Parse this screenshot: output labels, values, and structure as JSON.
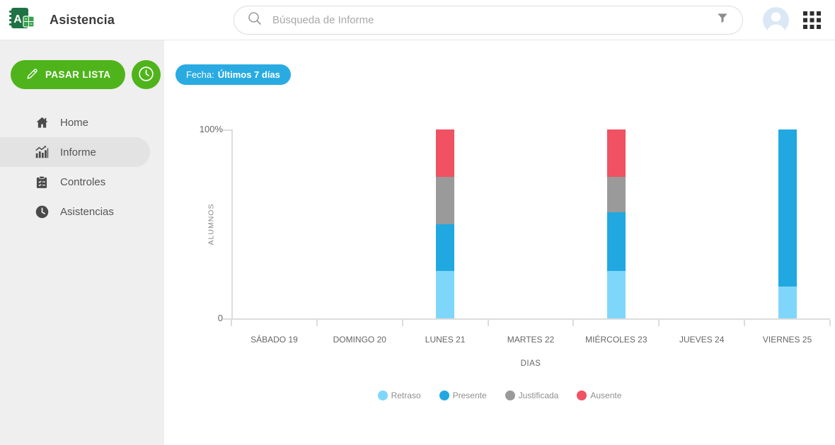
{
  "header": {
    "app_title": "Asistencia",
    "logo_letter": "A",
    "search": {
      "placeholder": "Búsqueda de Informe",
      "value": ""
    },
    "icons": {
      "search": "magnifier",
      "filter": "funnel",
      "apps": "3x3-grid",
      "avatar": "person-silhouette"
    }
  },
  "sidebar": {
    "pass_list_button": "PASAR LISTA",
    "items": [
      {
        "label": "Home",
        "icon": "home-icon",
        "active": false
      },
      {
        "label": "Informe",
        "icon": "bar-chart-icon",
        "active": true
      },
      {
        "label": "Controles",
        "icon": "clipboard-icon",
        "active": false
      },
      {
        "label": "Asistencias",
        "icon": "clock-icon",
        "active": false
      }
    ]
  },
  "filters": {
    "date_prefix": "Fecha:",
    "date_value": "Últimos 7 días"
  },
  "chart_data": {
    "type": "bar",
    "subtype": "stacked-percent",
    "title": "",
    "xlabel": "DIAS",
    "ylabel": "ALUMNOS",
    "ylim": [
      0,
      100
    ],
    "ytick_labels": [
      "0",
      "100%"
    ],
    "grid": false,
    "legend_position": "bottom",
    "categories": [
      "SÁBADO 19",
      "DOMINGO 20",
      "LUNES 21",
      "MARTES 22",
      "MIÉRCOLES 23",
      "JUEVES 24",
      "VIERNES 25"
    ],
    "series": [
      {
        "name": "Retraso",
        "color": "#7fd6fb",
        "values": [
          0,
          0,
          25,
          0,
          25,
          0,
          17
        ]
      },
      {
        "name": "Presente",
        "color": "#21a8e1",
        "values": [
          0,
          0,
          25,
          0,
          31,
          0,
          83
        ]
      },
      {
        "name": "Justificada",
        "color": "#9a9a9a",
        "values": [
          0,
          0,
          25,
          0,
          19,
          0,
          0
        ]
      },
      {
        "name": "Ausente",
        "color": "#f05163",
        "values": [
          0,
          0,
          25,
          0,
          25,
          0,
          0
        ]
      }
    ]
  },
  "colors": {
    "accent_blue": "#29abe2",
    "accent_green": "#4fb41b",
    "logo_green_dark": "#1f7244",
    "logo_green_light": "#35a14c",
    "sidebar_bg": "#efefef",
    "sidebar_active_bg": "#e3e3e3",
    "axis_line": "#dcdcdc"
  }
}
